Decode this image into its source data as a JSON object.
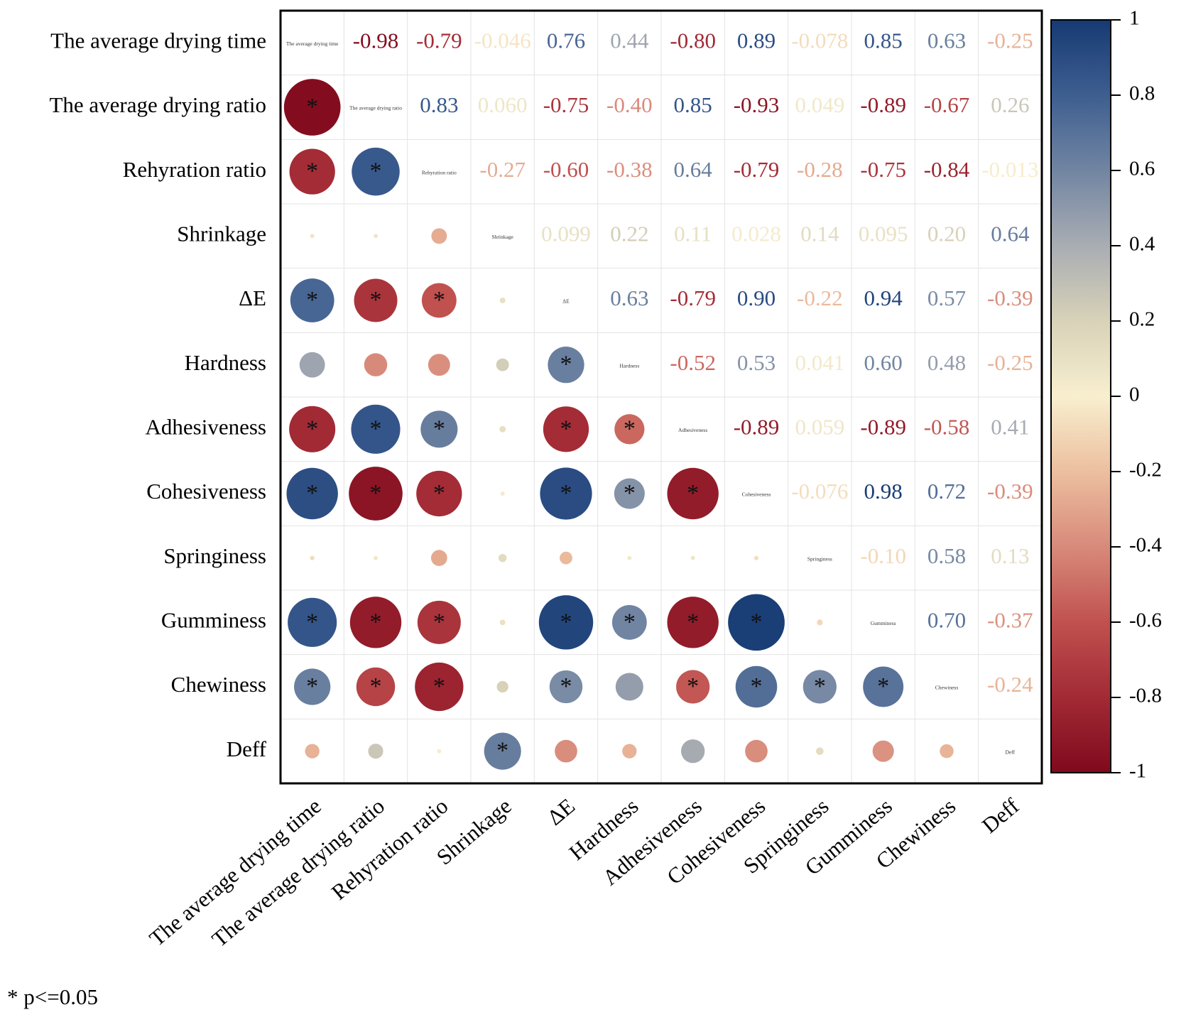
{
  "chart_data": {
    "type": "heatmap",
    "variables": [
      "The average drying time",
      "The average drying ratio",
      "Rehyration ratio",
      "Shrinkage",
      "ΔE",
      "Hardness",
      "Adhesiveness",
      "Cohesiveness",
      "Springiness",
      "Gumminess",
      "Chewiness",
      "Deff"
    ],
    "matrix": [
      [
        1.0,
        -0.98,
        -0.79,
        -0.046,
        0.76,
        0.44,
        -0.8,
        0.89,
        -0.078,
        0.85,
        0.63,
        -0.25
      ],
      [
        -0.98,
        1.0,
        0.83,
        0.06,
        -0.75,
        -0.4,
        0.85,
        -0.93,
        0.049,
        -0.89,
        -0.67,
        0.26
      ],
      [
        -0.79,
        0.83,
        1.0,
        -0.27,
        -0.6,
        -0.38,
        0.64,
        -0.79,
        -0.28,
        -0.75,
        -0.84,
        -0.013
      ],
      [
        -0.046,
        0.06,
        -0.27,
        1.0,
        0.099,
        0.22,
        0.11,
        0.028,
        0.14,
        0.095,
        0.2,
        0.64
      ],
      [
        0.76,
        -0.75,
        -0.6,
        0.099,
        1.0,
        0.63,
        -0.79,
        0.9,
        -0.22,
        0.94,
        0.57,
        -0.39
      ],
      [
        0.44,
        -0.4,
        -0.38,
        0.22,
        0.63,
        1.0,
        -0.52,
        0.53,
        0.041,
        0.6,
        0.48,
        -0.25
      ],
      [
        -0.8,
        0.85,
        0.64,
        0.11,
        -0.79,
        -0.52,
        1.0,
        -0.89,
        0.059,
        -0.89,
        -0.58,
        0.41
      ],
      [
        0.89,
        -0.93,
        -0.79,
        0.028,
        0.9,
        0.53,
        -0.89,
        1.0,
        -0.076,
        0.98,
        0.72,
        -0.39
      ],
      [
        -0.078,
        0.049,
        -0.28,
        0.14,
        -0.22,
        0.041,
        0.059,
        -0.076,
        1.0,
        -0.1,
        0.58,
        0.13
      ],
      [
        0.85,
        -0.89,
        -0.75,
        0.095,
        0.94,
        0.6,
        -0.89,
        0.98,
        -0.1,
        1.0,
        0.7,
        -0.37
      ],
      [
        0.63,
        -0.67,
        -0.84,
        0.2,
        0.57,
        0.48,
        -0.58,
        0.72,
        0.58,
        0.7,
        1.0,
        -0.24
      ],
      [
        -0.25,
        0.26,
        -0.013,
        0.64,
        -0.39,
        -0.25,
        0.41,
        -0.39,
        0.13,
        -0.37,
        -0.24,
        1.0
      ]
    ],
    "upper_labels": [
      [
        "",
        "-0.98",
        "-0.79",
        "-0.046",
        "0.76",
        "0.44",
        "-0.80",
        "0.89",
        "-0.078",
        "0.85",
        "0.63",
        "-0.25"
      ],
      [
        "",
        "",
        "0.83",
        "0.060",
        "-0.75",
        "-0.40",
        "0.85",
        "-0.93",
        "0.049",
        "-0.89",
        "-0.67",
        "0.26"
      ],
      [
        "",
        "",
        "",
        "-0.27",
        "-0.60",
        "-0.38",
        "0.64",
        "-0.79",
        "-0.28",
        "-0.75",
        "-0.84",
        "-0.013"
      ],
      [
        "",
        "",
        "",
        "",
        "0.099",
        "0.22",
        "0.11",
        "0.028",
        "0.14",
        "0.095",
        "0.20",
        "0.64"
      ],
      [
        "",
        "",
        "",
        "",
        "",
        "0.63",
        "-0.79",
        "0.90",
        "-0.22",
        "0.94",
        "0.57",
        "-0.39"
      ],
      [
        "",
        "",
        "",
        "",
        "",
        "",
        "-0.52",
        "0.53",
        "0.041",
        "0.60",
        "0.48",
        "-0.25"
      ],
      [
        "",
        "",
        "",
        "",
        "",
        "",
        "",
        "-0.89",
        "0.059",
        "-0.89",
        "-0.58",
        "0.41"
      ],
      [
        "",
        "",
        "",
        "",
        "",
        "",
        "",
        "",
        "-0.076",
        "0.98",
        "0.72",
        "-0.39"
      ],
      [
        "",
        "",
        "",
        "",
        "",
        "",
        "",
        "",
        "",
        "-0.10",
        "0.58",
        "0.13"
      ],
      [
        "",
        "",
        "",
        "",
        "",
        "",
        "",
        "",
        "",
        "",
        "0.70",
        "-0.37"
      ],
      [
        "",
        "",
        "",
        "",
        "",
        "",
        "",
        "",
        "",
        "",
        "",
        "-0.24"
      ],
      [
        "",
        "",
        "",
        "",
        "",
        "",
        "",
        "",
        "",
        "",
        "",
        ""
      ]
    ],
    "significant": [
      [
        2,
        1
      ],
      [
        3,
        1
      ],
      [
        3,
        2
      ],
      [
        5,
        1
      ],
      [
        5,
        2
      ],
      [
        5,
        3
      ],
      [
        6,
        5
      ],
      [
        7,
        1
      ],
      [
        7,
        2
      ],
      [
        7,
        3
      ],
      [
        7,
        5
      ],
      [
        7,
        6
      ],
      [
        8,
        1
      ],
      [
        8,
        2
      ],
      [
        8,
        3
      ],
      [
        8,
        5
      ],
      [
        8,
        6
      ],
      [
        8,
        7
      ],
      [
        10,
        1
      ],
      [
        10,
        2
      ],
      [
        10,
        3
      ],
      [
        10,
        5
      ],
      [
        10,
        6
      ],
      [
        10,
        7
      ],
      [
        10,
        8
      ],
      [
        11,
        1
      ],
      [
        11,
        2
      ],
      [
        11,
        3
      ],
      [
        11,
        5
      ],
      [
        11,
        7
      ],
      [
        11,
        8
      ],
      [
        11,
        9
      ],
      [
        11,
        10
      ],
      [
        12,
        4
      ]
    ],
    "significance_marker": "*",
    "colorbar": {
      "min": -1,
      "max": 1,
      "ticks": [
        "1",
        "0.8",
        "0.6",
        "0.4",
        "0.2",
        "0",
        "-0.2",
        "-0.4",
        "-0.6",
        "-0.8",
        "-1"
      ]
    },
    "colors": {
      "negative": "#7f0a1c",
      "neutral": "#f8efcf",
      "positive": "#163a73"
    },
    "lower_triangle": "circle",
    "upper_triangle": "number",
    "diagonal": "variable name",
    "footnote": "* p<=0.05"
  }
}
